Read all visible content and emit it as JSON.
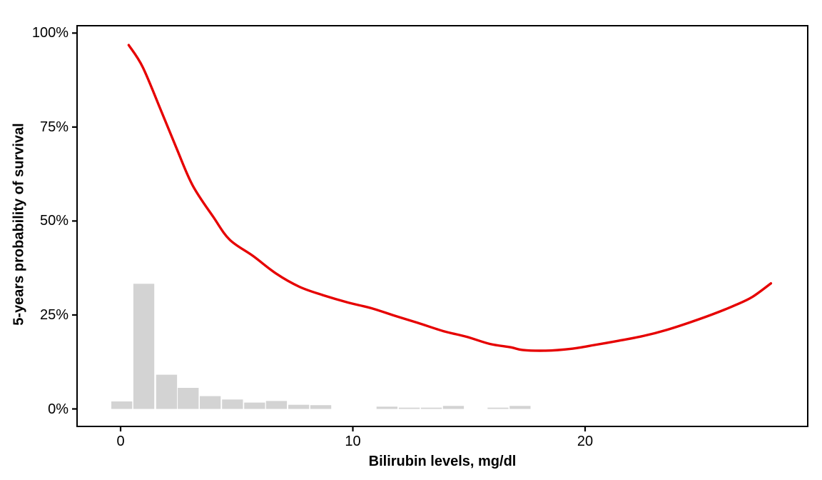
{
  "figure": {
    "background_color": "#ffffff",
    "panel_border_color": "#000000",
    "tick_color": "#000000",
    "text_color": "#000000"
  },
  "chart_data": {
    "type": "line",
    "title": "",
    "xlabel": "Bilirubin levels, mg/dl",
    "ylabel": "5-years probability of survival",
    "legend": "none",
    "grid": false,
    "xlim": [
      -1.9,
      29.6
    ],
    "ylim": [
      -4.7,
      102
    ],
    "x_ticks": [
      {
        "value": 0,
        "label": "0"
      },
      {
        "value": 10,
        "label": "10"
      },
      {
        "value": 20,
        "label": "20"
      }
    ],
    "y_ticks": [
      {
        "value": 0,
        "label": "0%"
      },
      {
        "value": 25,
        "label": "25%"
      },
      {
        "value": 50,
        "label": "50%"
      },
      {
        "value": 75,
        "label": "75%"
      },
      {
        "value": 100,
        "label": "100%"
      }
    ],
    "series": [
      {
        "name": "5-years survival probability (smoothed fit)",
        "type": "line",
        "color": "#e60000",
        "stroke_width": 3.4,
        "points": [
          [
            0.35,
            96.8
          ],
          [
            0.95,
            91.0
          ],
          [
            1.7,
            80.0
          ],
          [
            2.4,
            69.5
          ],
          [
            3.1,
            59.5
          ],
          [
            4.0,
            51.0
          ],
          [
            4.7,
            45.0
          ],
          [
            5.7,
            40.7
          ],
          [
            6.7,
            36.0
          ],
          [
            7.7,
            32.5
          ],
          [
            8.7,
            30.3
          ],
          [
            9.8,
            28.3
          ],
          [
            10.8,
            26.8
          ],
          [
            11.8,
            24.8
          ],
          [
            12.8,
            22.9
          ],
          [
            13.9,
            20.7
          ],
          [
            14.9,
            19.2
          ],
          [
            15.9,
            17.3
          ],
          [
            16.8,
            16.4
          ],
          [
            17.3,
            15.7
          ],
          [
            18.3,
            15.5
          ],
          [
            19.4,
            16.0
          ],
          [
            20.4,
            17.0
          ],
          [
            21.4,
            18.1
          ],
          [
            22.5,
            19.4
          ],
          [
            23.5,
            21.0
          ],
          [
            24.5,
            23.0
          ],
          [
            25.5,
            25.2
          ],
          [
            26.5,
            27.7
          ],
          [
            27.2,
            29.8
          ],
          [
            28.0,
            33.4
          ]
        ]
      }
    ],
    "histogram": {
      "name": "bilirubin level distribution",
      "color": "#d3d3d3",
      "baseline_value": 0,
      "bar_width_units": 0.9,
      "bars": [
        {
          "x": 0.05,
          "height_pct": 2.0
        },
        {
          "x": 1.0,
          "height_pct": 33.3
        },
        {
          "x": 1.98,
          "height_pct": 9.1
        },
        {
          "x": 2.91,
          "height_pct": 5.6
        },
        {
          "x": 3.86,
          "height_pct": 3.4
        },
        {
          "x": 4.82,
          "height_pct": 2.5
        },
        {
          "x": 5.77,
          "height_pct": 1.7
        },
        {
          "x": 6.71,
          "height_pct": 2.1
        },
        {
          "x": 7.67,
          "height_pct": 1.1
        },
        {
          "x": 8.62,
          "height_pct": 1.0
        },
        {
          "x": 11.47,
          "height_pct": 0.6
        },
        {
          "x": 12.43,
          "height_pct": 0.35
        },
        {
          "x": 13.38,
          "height_pct": 0.35
        },
        {
          "x": 14.33,
          "height_pct": 0.8
        },
        {
          "x": 16.25,
          "height_pct": 0.35
        },
        {
          "x": 17.2,
          "height_pct": 0.8
        }
      ]
    }
  }
}
